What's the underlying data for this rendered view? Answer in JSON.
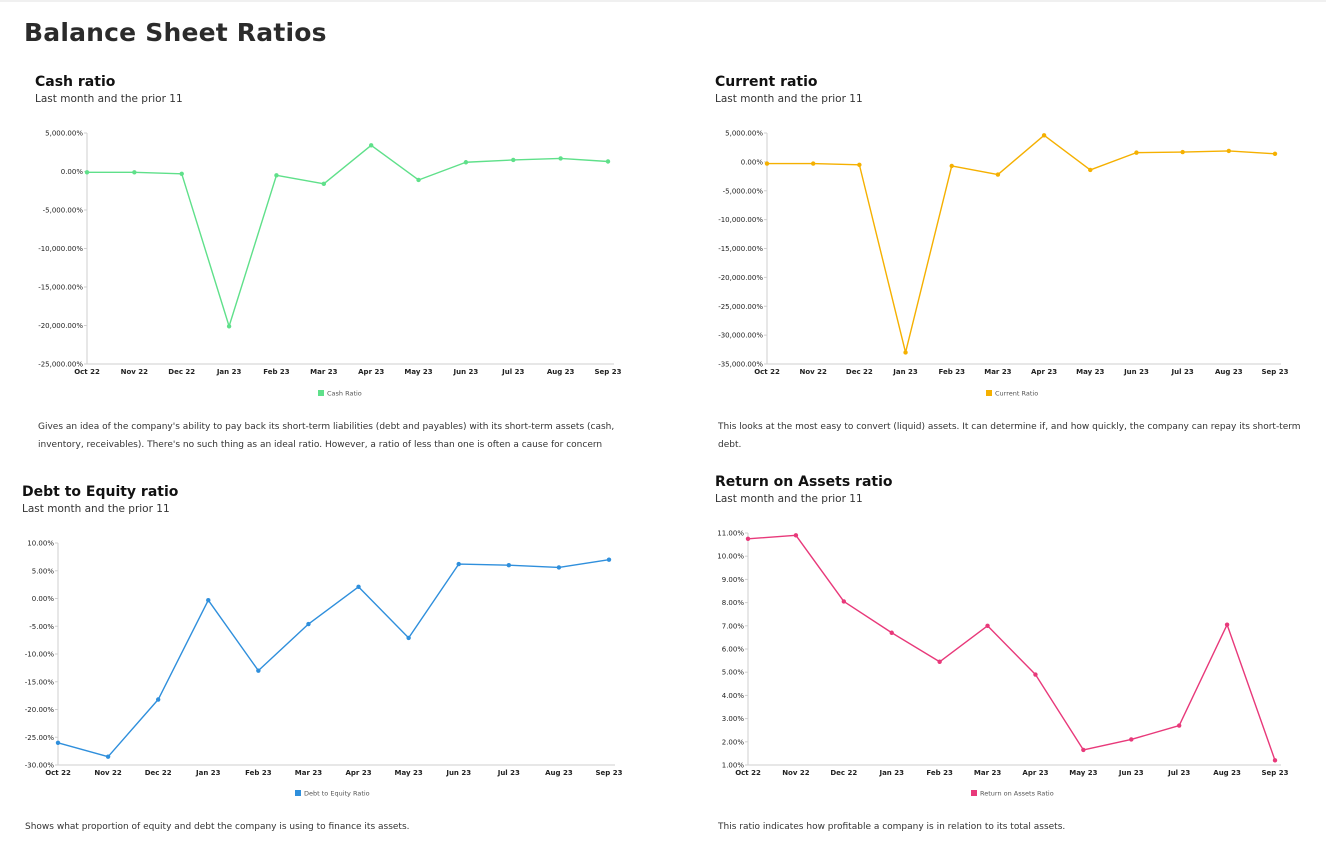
{
  "page": {
    "title": "Balance Sheet Ratios"
  },
  "panels": [
    {
      "title": "Cash ratio",
      "subtitle": "Last month and the prior 11",
      "description": "Gives an idea of the company's ability to pay back its short-term liabilities (debt and payables) with its short-term assets (cash, inventory, receivables). There's no such thing as an ideal ratio. However, a ratio of less than one is often a cause for concern"
    },
    {
      "title": "Current ratio",
      "subtitle": "Last month and the prior 11",
      "description": "This looks at the most easy to convert (liquid) assets. It can determine if, and how quickly, the company can repay its short-term debt."
    },
    {
      "title": "Debt to Equity ratio",
      "subtitle": "Last month and the prior 11",
      "description": "Shows what proportion of equity and debt the company is using to finance its assets."
    },
    {
      "title": "Return on Assets ratio",
      "subtitle": "Last month and the prior 11",
      "description": "This ratio indicates how profitable a company is in relation to its total assets."
    }
  ],
  "chart_data": [
    {
      "type": "line",
      "title": "Cash ratio",
      "categories": [
        "Oct 22",
        "Nov 22",
        "Dec 22",
        "Jan 23",
        "Feb 23",
        "Mar 23",
        "Apr 23",
        "May 23",
        "Jun 23",
        "Jul 23",
        "Aug 23",
        "Sep 23"
      ],
      "series": [
        {
          "name": "Cash Ratio",
          "color": "#5fe08a",
          "values": [
            -100,
            -100,
            -300,
            -20100,
            -500,
            -1600,
            3400,
            -1100,
            1200,
            1500,
            1700,
            1300
          ]
        }
      ],
      "yticks": [
        5000,
        0,
        -5000,
        -10000,
        -15000,
        -20000,
        -25000
      ],
      "ytick_labels": [
        "5,000.00%",
        "0.00%",
        "-5,000.00%",
        "-10,000.00%",
        "-15,000.00%",
        "-20,000.00%",
        "-25,000.00%"
      ],
      "ylim": [
        -25000,
        5000
      ],
      "legend": "bottom"
    },
    {
      "type": "line",
      "title": "Current ratio",
      "categories": [
        "Oct 22",
        "Nov 22",
        "Dec 22",
        "Jan 23",
        "Feb 23",
        "Mar 23",
        "Apr 23",
        "May 23",
        "Jun 23",
        "Jul 23",
        "Aug 23",
        "Sep 23"
      ],
      "series": [
        {
          "name": "Current Ratio",
          "color": "#f5b000",
          "values": [
            -300,
            -300,
            -500,
            -33000,
            -700,
            -2200,
            4600,
            -1400,
            1600,
            1700,
            1900,
            1400
          ]
        }
      ],
      "yticks": [
        5000,
        0,
        -5000,
        -10000,
        -15000,
        -20000,
        -25000,
        -30000,
        -35000
      ],
      "ytick_labels": [
        "5,000.00%",
        "0.00%",
        "-5,000.00%",
        "-10,000.00%",
        "-15,000.00%",
        "-20,000.00%",
        "-25,000.00%",
        "-30,000.00%",
        "-35,000.00%"
      ],
      "ylim": [
        -35000,
        5000
      ],
      "legend": "bottom"
    },
    {
      "type": "line",
      "title": "Debt to Equity ratio",
      "categories": [
        "Oct 22",
        "Nov 22",
        "Dec 22",
        "Jan 23",
        "Feb 23",
        "Mar 23",
        "Apr 23",
        "May 23",
        "Jun 23",
        "Jul 23",
        "Aug 23",
        "Sep 23"
      ],
      "series": [
        {
          "name": "Debt to Equity Ratio",
          "color": "#2f8fdc",
          "values": [
            -26.0,
            -28.5,
            -18.2,
            -0.3,
            -13.0,
            -4.6,
            2.1,
            -7.1,
            6.2,
            6.0,
            5.6,
            7.0
          ]
        }
      ],
      "yticks": [
        10,
        5,
        0,
        -5,
        -10,
        -15,
        -20,
        -25,
        -30
      ],
      "ytick_labels": [
        "10.00%",
        "5.00%",
        "0.00%",
        "-5.00%",
        "-10.00%",
        "-15.00%",
        "-20.00%",
        "-25.00%",
        "-30.00%"
      ],
      "ylim": [
        -30,
        10
      ],
      "legend": "bottom"
    },
    {
      "type": "line",
      "title": "Return on Assets ratio",
      "categories": [
        "Oct 22",
        "Nov 22",
        "Dec 22",
        "Jan 23",
        "Feb 23",
        "Mar 23",
        "Apr 23",
        "May 23",
        "Jun 23",
        "Jul 23",
        "Aug 23",
        "Sep 23"
      ],
      "series": [
        {
          "name": "Return on Assets Ratio",
          "color": "#e8397a",
          "values": [
            10.75,
            10.9,
            8.05,
            6.7,
            5.45,
            7.0,
            4.9,
            1.65,
            2.1,
            2.7,
            7.05,
            1.2
          ]
        }
      ],
      "yticks": [
        11,
        10,
        9,
        8,
        7,
        6,
        5,
        4,
        3,
        2,
        1
      ],
      "ytick_labels": [
        "11.00%",
        "10.00%",
        "9.00%",
        "8.00%",
        "7.00%",
        "6.00%",
        "5.00%",
        "4.00%",
        "3.00%",
        "2.00%",
        "1.00%"
      ],
      "ylim": [
        1,
        11
      ],
      "legend": "bottom"
    }
  ]
}
